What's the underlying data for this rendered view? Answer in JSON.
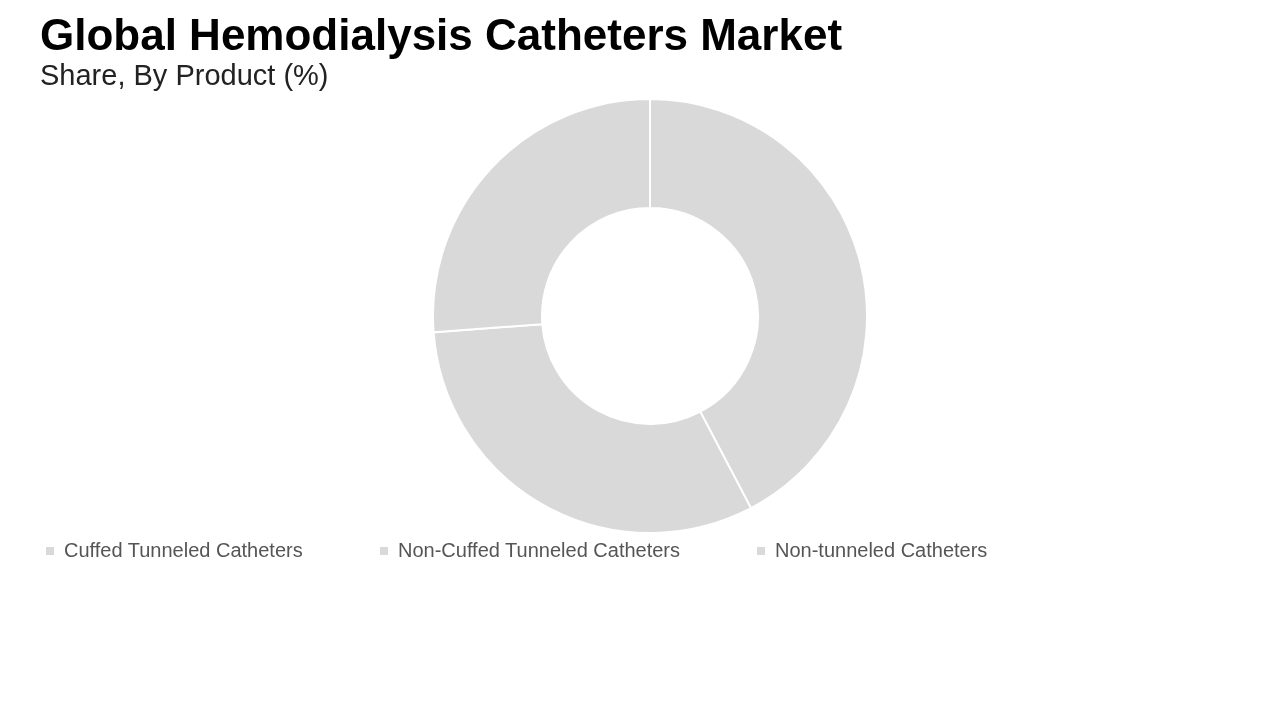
{
  "chart_data": {
    "type": "donut",
    "title": "Global Hemodialysis Catheters Market",
    "subtitle": "Share, By Product (%)",
    "categories": [
      "Cuffed Tunneled Catheters",
      "Non-Cuffed Tunneled Catheters",
      "Non-tunneled Catheters"
    ],
    "values": [
      42.3,
      31.5,
      26.2
    ],
    "colors": [
      "#d9d9d9",
      "#d9d9d9",
      "#d9d9d9"
    ],
    "legend": "bottom"
  }
}
